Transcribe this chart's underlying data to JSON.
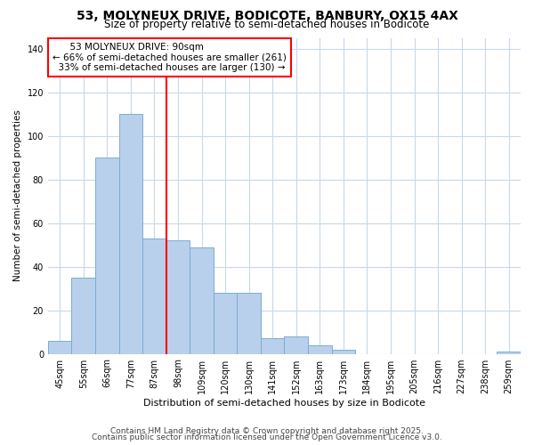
{
  "title": "53, MOLYNEUX DRIVE, BODICOTE, BANBURY, OX15 4AX",
  "subtitle": "Size of property relative to semi-detached houses in Bodicote",
  "xlabel": "Distribution of semi-detached houses by size in Bodicote",
  "ylabel": "Number of semi-detached properties",
  "categories": [
    "45sqm",
    "55sqm",
    "66sqm",
    "77sqm",
    "87sqm",
    "98sqm",
    "109sqm",
    "120sqm",
    "130sqm",
    "141sqm",
    "152sqm",
    "163sqm",
    "173sqm",
    "184sqm",
    "195sqm",
    "205sqm",
    "216sqm",
    "227sqm",
    "238sqm",
    "259sqm"
  ],
  "values": [
    6,
    35,
    90,
    110,
    53,
    52,
    49,
    28,
    28,
    7,
    8,
    4,
    2,
    0,
    0,
    0,
    0,
    0,
    0,
    1
  ],
  "bar_color": "#b8d0eb",
  "bar_edge_color": "#7aadd4",
  "red_line_index": 5,
  "red_line_label": "53 MOLYNEUX DRIVE: 90sqm",
  "pct_smaller": 66,
  "count_smaller": 261,
  "pct_larger": 33,
  "count_larger": 130,
  "ylim": [
    0,
    145
  ],
  "yticks": [
    0,
    20,
    40,
    60,
    80,
    100,
    120,
    140
  ],
  "footer1": "Contains HM Land Registry data © Crown copyright and database right 2025.",
  "footer2": "Contains public sector information licensed under the Open Government Licence v3.0.",
  "bg_color": "#ffffff",
  "plot_bg_color": "#ffffff",
  "grid_color": "#c8d8ec",
  "title_fontsize": 10,
  "subtitle_fontsize": 8.5,
  "xlabel_fontsize": 8,
  "ylabel_fontsize": 7.5,
  "tick_fontsize": 7,
  "footer_fontsize": 6.5,
  "annot_fontsize": 7.5
}
